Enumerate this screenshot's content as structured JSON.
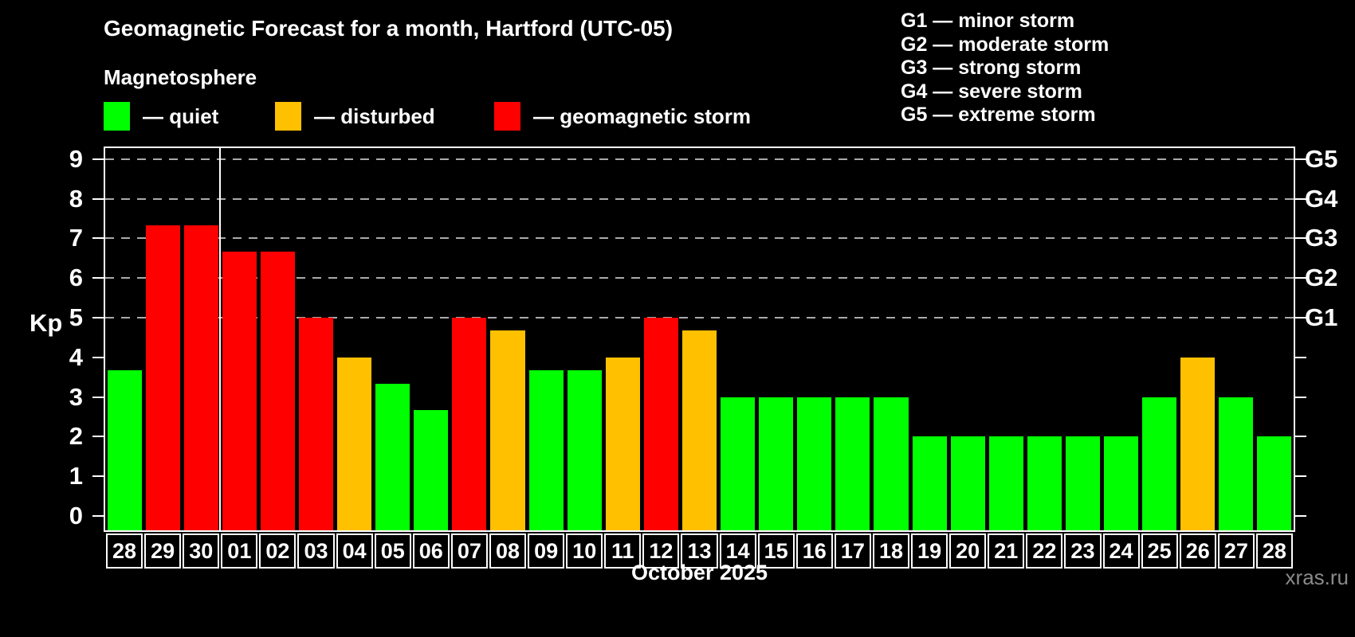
{
  "title": "Geomagnetic Forecast for a month, Hartford (UTC-05)",
  "subtitle": "Magnetosphere",
  "legend": {
    "items": [
      {
        "label": "— quiet",
        "status": "quiet"
      },
      {
        "label": "— disturbed",
        "status": "disturbed"
      },
      {
        "label": "— geomagnetic storm",
        "status": "storm"
      }
    ]
  },
  "g_scale_legend": [
    "G1 — minor storm",
    "G2 — moderate storm",
    "G3 — strong storm",
    "G4 — severe storm",
    "G5 — extreme storm"
  ],
  "watermark": "xras.ru",
  "colors": {
    "quiet": "#00ff00",
    "disturbed": "#ffc000",
    "storm": "#ff0000",
    "background": "#000000",
    "grid": "#aaaaaa",
    "axis": "#ffffff",
    "watermark": "#8a8a8a"
  },
  "chart_data": {
    "type": "bar",
    "title": "Geomagnetic Forecast for a month, Hartford (UTC-05)",
    "xlabel": "October 2025",
    "ylabel": "Kp",
    "ylim": [
      0,
      9
    ],
    "yticks": [
      0,
      1,
      2,
      3,
      4,
      5,
      6,
      7,
      8,
      9
    ],
    "gridlines_at": [
      5,
      6,
      7,
      8,
      9
    ],
    "right_axis_labels": {
      "5": "G1",
      "6": "G2",
      "7": "G3",
      "8": "G4",
      "9": "G5"
    },
    "legend_position": "top-left",
    "grid": "dashed, only at Kp 5-9",
    "month_separator_after_index": 2,
    "categories": [
      "28",
      "29",
      "30",
      "01",
      "02",
      "03",
      "04",
      "05",
      "06",
      "07",
      "08",
      "09",
      "10",
      "11",
      "12",
      "13",
      "14",
      "15",
      "16",
      "17",
      "18",
      "19",
      "20",
      "21",
      "22",
      "23",
      "24",
      "25",
      "26",
      "27",
      "28"
    ],
    "values": [
      3.67,
      7.33,
      7.33,
      6.67,
      6.67,
      5.0,
      4.0,
      3.33,
      2.67,
      5.0,
      4.67,
      3.67,
      3.67,
      4.0,
      5.0,
      4.67,
      3.0,
      3.0,
      3.0,
      3.0,
      3.0,
      2.0,
      2.0,
      2.0,
      2.0,
      2.0,
      2.0,
      3.0,
      4.0,
      3.0,
      2.0
    ],
    "statuses": [
      "quiet",
      "storm",
      "storm",
      "storm",
      "storm",
      "storm",
      "disturbed",
      "quiet",
      "quiet",
      "storm",
      "disturbed",
      "quiet",
      "quiet",
      "disturbed",
      "storm",
      "disturbed",
      "quiet",
      "quiet",
      "quiet",
      "quiet",
      "quiet",
      "quiet",
      "quiet",
      "quiet",
      "quiet",
      "quiet",
      "quiet",
      "quiet",
      "disturbed",
      "quiet",
      "quiet"
    ]
  }
}
